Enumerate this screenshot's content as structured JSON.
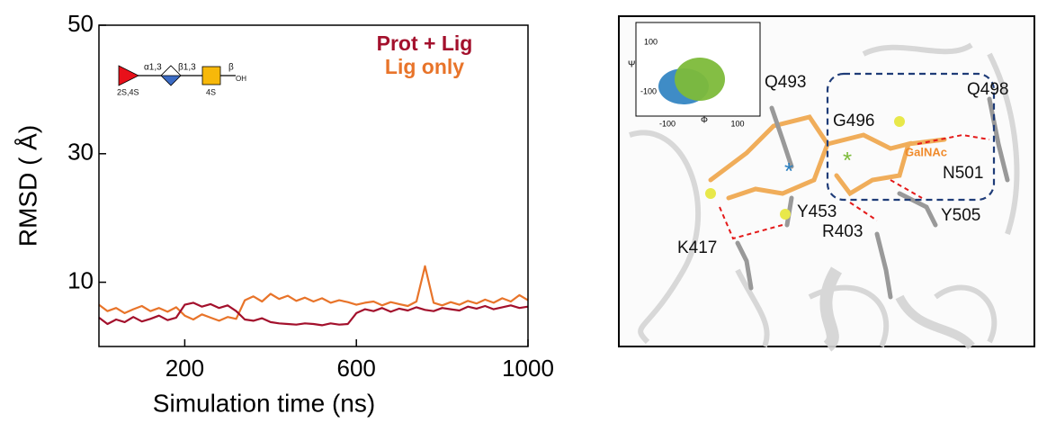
{
  "chart_data": {
    "type": "line",
    "x_label": "Simulation time (ns)",
    "y_label": "RMSD ( Å)",
    "xlim": [
      0,
      1000
    ],
    "xticks": [
      200,
      600,
      1000
    ],
    "ylim": [
      0,
      50
    ],
    "yticks": [
      10,
      30,
      50
    ],
    "legend": "upper right",
    "x": [
      0,
      20,
      40,
      60,
      80,
      100,
      120,
      140,
      160,
      180,
      200,
      220,
      240,
      260,
      280,
      300,
      320,
      340,
      360,
      380,
      400,
      420,
      440,
      460,
      480,
      500,
      520,
      540,
      560,
      580,
      600,
      620,
      640,
      660,
      680,
      700,
      720,
      740,
      760,
      780,
      800,
      820,
      840,
      860,
      880,
      900,
      920,
      940,
      960,
      980,
      1000
    ],
    "series": [
      {
        "name": "Prot + Lig",
        "color": "#a3102c",
        "values": [
          4.5,
          3.5,
          4.2,
          3.8,
          4.6,
          3.9,
          4.3,
          4.8,
          4.1,
          4.5,
          6.5,
          6.8,
          6.2,
          6.6,
          6.0,
          6.4,
          5.5,
          4.2,
          4.0,
          4.4,
          3.8,
          3.6,
          3.5,
          3.4,
          3.6,
          3.5,
          3.3,
          3.6,
          3.4,
          3.5,
          5.2,
          5.8,
          5.5,
          6.0,
          5.4,
          5.9,
          5.6,
          6.1,
          5.7,
          5.5,
          6.0,
          5.8,
          5.6,
          6.2,
          5.9,
          6.3,
          5.8,
          6.1,
          6.4,
          6.0,
          6.2
        ]
      },
      {
        "name": "Lig only",
        "color": "#e8742a",
        "values": [
          6.5,
          5.5,
          6.0,
          5.2,
          5.8,
          6.3,
          5.5,
          6.0,
          5.4,
          6.1,
          4.8,
          4.2,
          5.0,
          4.5,
          4.0,
          4.6,
          4.3,
          7.2,
          7.8,
          7.0,
          8.2,
          7.4,
          7.9,
          7.1,
          7.6,
          7.0,
          7.5,
          6.8,
          7.2,
          6.9,
          6.5,
          6.8,
          7.0,
          6.4,
          6.9,
          6.6,
          6.3,
          7.0,
          12.5,
          6.8,
          6.4,
          6.9,
          6.5,
          7.1,
          6.7,
          7.3,
          6.8,
          7.5,
          7.0,
          8.0,
          7.2
        ]
      }
    ],
    "glycan": {
      "linkages": [
        "α1,3",
        "β1,3",
        "β"
      ],
      "reducing_end": "OH",
      "sulfation": [
        "2S,4S",
        "4S"
      ]
    }
  },
  "structure_panel": {
    "inset": {
      "y_label": "Ψ",
      "x_label": "Φ",
      "y_tick_labels": [
        "100",
        "-100"
      ],
      "x_tick_labels": [
        "-100",
        "100"
      ]
    },
    "residue_labels": [
      "Q493",
      "Q498",
      "G496",
      "GalNAc",
      "N501",
      "Y453",
      "Y505",
      "R403",
      "K417"
    ],
    "markers": [
      "*",
      "*"
    ]
  }
}
